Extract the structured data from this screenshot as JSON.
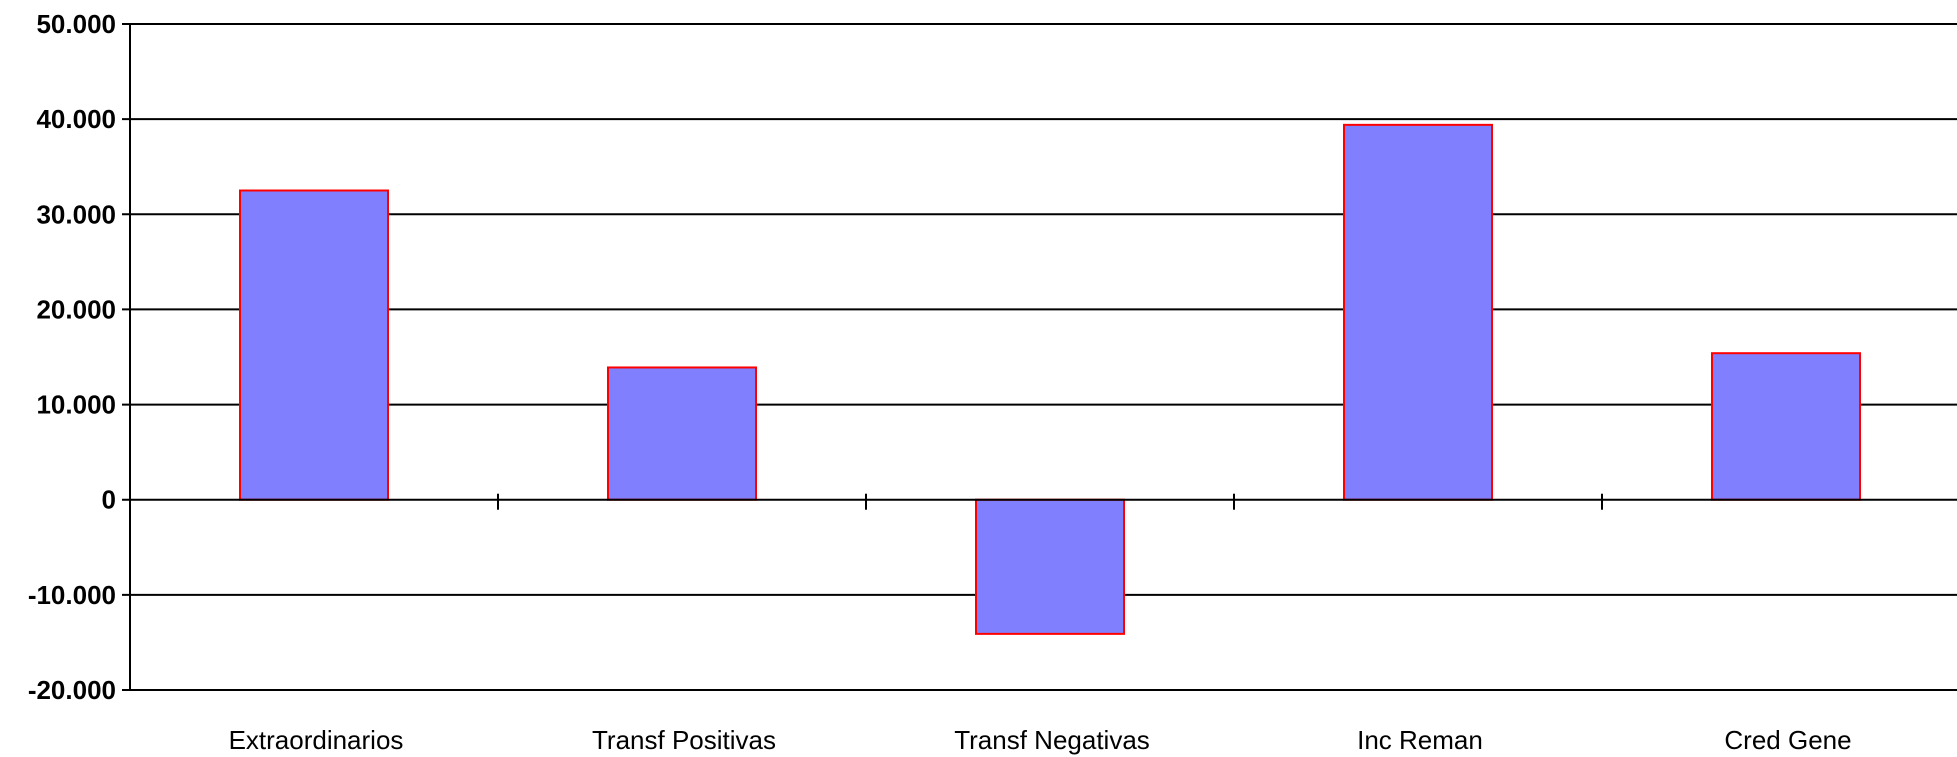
{
  "chart_data": {
    "type": "bar",
    "title": "",
    "xlabel": "",
    "ylabel": "",
    "categories": [
      "Extraordinarios",
      "Transf Positivas",
      "Transf Negativas",
      "Inc Reman",
      "Cred Gene"
    ],
    "values": [
      32500,
      13900,
      -14100,
      39400,
      15400
    ],
    "ylim": [
      -20000,
      50000
    ],
    "yticks": [
      50000,
      40000,
      30000,
      20000,
      10000,
      0,
      -10000,
      -20000
    ],
    "ytick_labels": [
      "50.000",
      "40.000",
      "30.000",
      "20.000",
      "10.000",
      "0",
      "-10.000",
      "-20.000"
    ],
    "grid": true,
    "legend": "none",
    "colors": {
      "bar_fill": "#8080ff",
      "bar_stroke": "#ff0000",
      "grid": "#000000",
      "axis": "#000000"
    }
  }
}
